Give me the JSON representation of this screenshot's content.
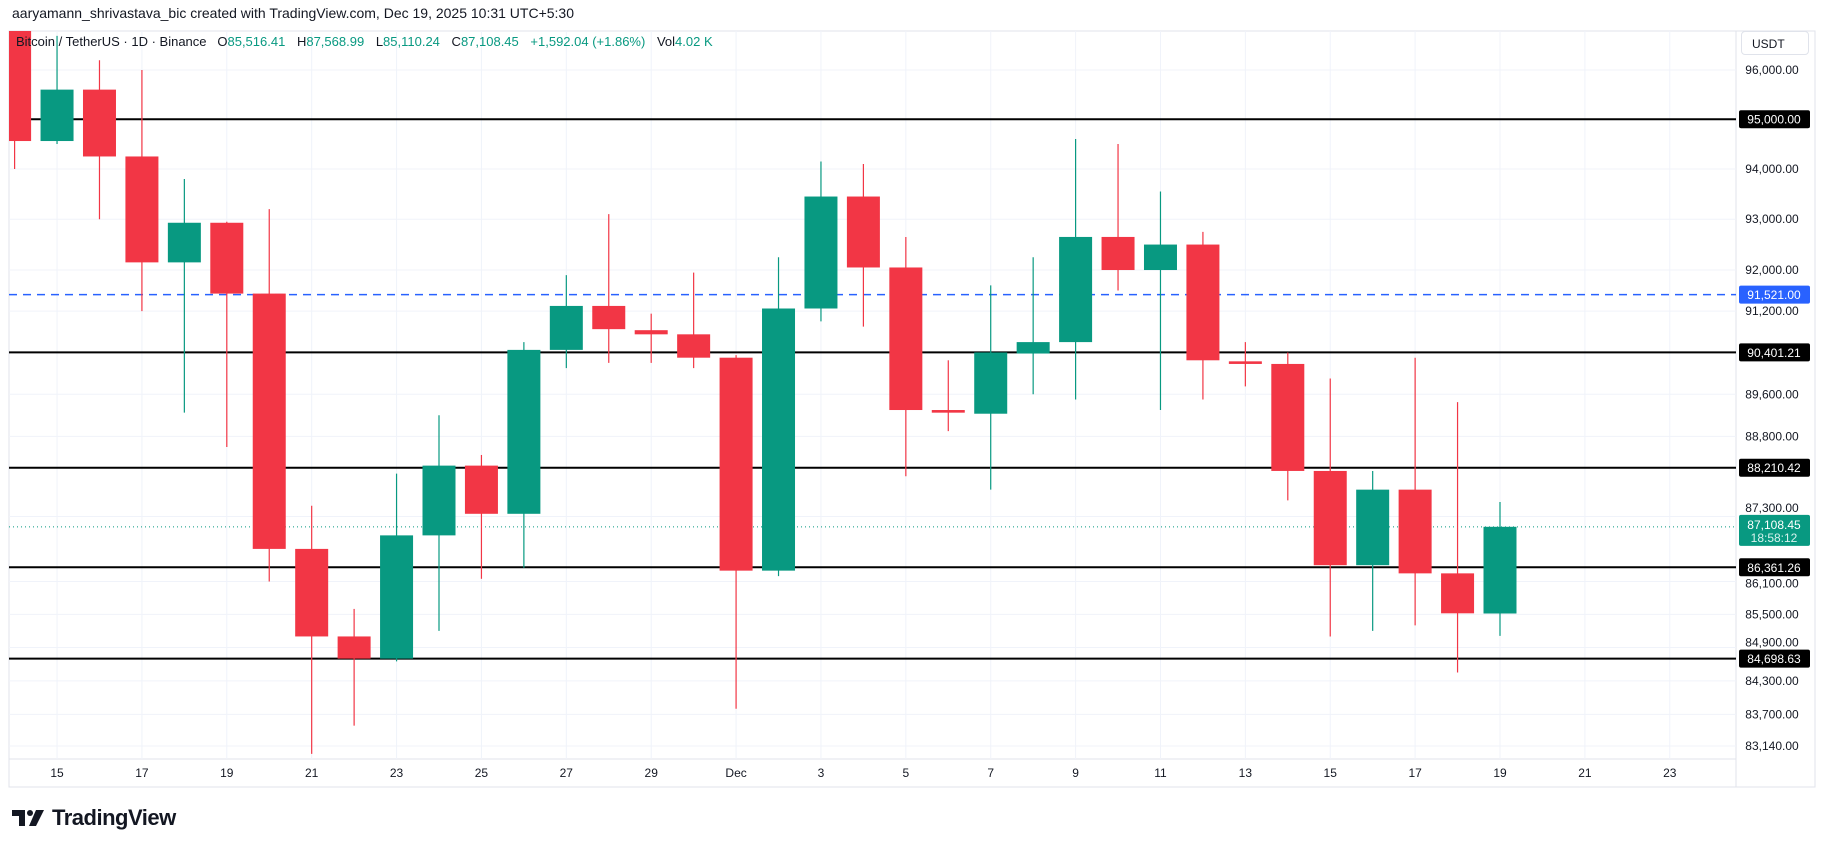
{
  "credit": "aaryamann_shrivastava_bic created with TradingView.com, Dec 19, 2025 10:31 UTC+5:30",
  "legend": {
    "symbol": "Bitcoin / TetherUS · 1D · Binance",
    "open_label": "O",
    "open": "85,516.41",
    "high_label": "H",
    "high": "87,568.99",
    "low_label": "L",
    "low": "85,110.24",
    "close_label": "C",
    "close": "87,108.45",
    "change": "+1,592.04 (+1.86%)",
    "vol_label": "Vol",
    "vol": "4.02 K"
  },
  "currency": "USDT",
  "logo_text": "TradingView",
  "colors": {
    "up": "#089981",
    "down": "#F23645",
    "level": "#000000",
    "blue_level": "#2962FF",
    "grid": "#f0f3fa"
  },
  "chart_data": {
    "type": "candlestick",
    "scale": "log",
    "ylim": [
      83000,
      97500
    ],
    "grid": true,
    "y_ticks": [
      "96,000.00",
      "94,000.00",
      "93,000.00",
      "92,000.00",
      "91,200.00",
      "89,600.00",
      "88,800.00",
      "87,300.00",
      "86,100.00",
      "85,500.00",
      "84,900.00",
      "84,300.00",
      "83,700.00",
      "83,140.00"
    ],
    "x_labels": [
      {
        "day": 1,
        "text": "15"
      },
      {
        "day": 3,
        "text": "17"
      },
      {
        "day": 5,
        "text": "19"
      },
      {
        "day": 7,
        "text": "21"
      },
      {
        "day": 9,
        "text": "23"
      },
      {
        "day": 11,
        "text": "25"
      },
      {
        "day": 13,
        "text": "27"
      },
      {
        "day": 15,
        "text": "29"
      },
      {
        "day": 17,
        "text": "Dec"
      },
      {
        "day": 19,
        "text": "3"
      },
      {
        "day": 21,
        "text": "5"
      },
      {
        "day": 23,
        "text": "7"
      },
      {
        "day": 25,
        "text": "9"
      },
      {
        "day": 27,
        "text": "11"
      },
      {
        "day": 29,
        "text": "13"
      },
      {
        "day": 31,
        "text": "15"
      },
      {
        "day": 33,
        "text": "17"
      },
      {
        "day": 35,
        "text": "19"
      },
      {
        "day": 37,
        "text": "21"
      },
      {
        "day": 39,
        "text": "23"
      }
    ],
    "candles": [
      {
        "date": "Nov 14",
        "o": 97200,
        "h": 99000,
        "l": 94000,
        "c": 94560
      },
      {
        "date": "Nov 15",
        "o": 94560,
        "h": 96700,
        "l": 94500,
        "c": 95600
      },
      {
        "date": "Nov 16",
        "o": 95600,
        "h": 96200,
        "l": 93000,
        "c": 94250
      },
      {
        "date": "Nov 17",
        "o": 94250,
        "h": 96000,
        "l": 91200,
        "c": 92150
      },
      {
        "date": "Nov 18",
        "o": 92150,
        "h": 93800,
        "l": 89250,
        "c": 92930
      },
      {
        "date": "Nov 19",
        "o": 92930,
        "h": 92950,
        "l": 88600,
        "c": 91540
      },
      {
        "date": "Nov 20",
        "o": 91540,
        "h": 93200,
        "l": 86100,
        "c": 86700
      },
      {
        "date": "Nov 21",
        "o": 86700,
        "h": 87500,
        "l": 83000,
        "c": 85100
      },
      {
        "date": "Nov 22",
        "o": 85100,
        "h": 85600,
        "l": 83500,
        "c": 84700
      },
      {
        "date": "Nov 23",
        "o": 84700,
        "h": 88100,
        "l": 84650,
        "c": 86950
      },
      {
        "date": "Nov 24",
        "o": 86950,
        "h": 89200,
        "l": 85200,
        "c": 88250
      },
      {
        "date": "Nov 25",
        "o": 88250,
        "h": 88450,
        "l": 86150,
        "c": 87350
      },
      {
        "date": "Nov 26",
        "o": 87350,
        "h": 90600,
        "l": 86350,
        "c": 90450
      },
      {
        "date": "Nov 27",
        "o": 90450,
        "h": 91900,
        "l": 90100,
        "c": 91300
      },
      {
        "date": "Nov 28",
        "o": 91300,
        "h": 93100,
        "l": 90200,
        "c": 90850
      },
      {
        "date": "Nov 29",
        "o": 90830,
        "h": 91150,
        "l": 90200,
        "c": 90750
      },
      {
        "date": "Nov 30",
        "o": 90750,
        "h": 91950,
        "l": 90100,
        "c": 90300
      },
      {
        "date": "Dec 1",
        "o": 90300,
        "h": 90350,
        "l": 83800,
        "c": 86300
      },
      {
        "date": "Dec 2",
        "o": 86300,
        "h": 92250,
        "l": 86200,
        "c": 91250
      },
      {
        "date": "Dec 3",
        "o": 91250,
        "h": 94150,
        "l": 91000,
        "c": 93450
      },
      {
        "date": "Dec 4",
        "o": 93450,
        "h": 94100,
        "l": 90900,
        "c": 92050
      },
      {
        "date": "Dec 5",
        "o": 92050,
        "h": 92650,
        "l": 88050,
        "c": 89300
      },
      {
        "date": "Dec 6",
        "o": 89300,
        "h": 90250,
        "l": 88900,
        "c": 89250
      },
      {
        "date": "Dec 7",
        "o": 89230,
        "h": 91700,
        "l": 87800,
        "c": 90400
      },
      {
        "date": "Dec 8",
        "o": 90380,
        "h": 92250,
        "l": 89600,
        "c": 90600
      },
      {
        "date": "Dec 9",
        "o": 90600,
        "h": 94600,
        "l": 89500,
        "c": 92650
      },
      {
        "date": "Dec 10",
        "o": 92650,
        "h": 94500,
        "l": 91600,
        "c": 92000
      },
      {
        "date": "Dec 11",
        "o": 92000,
        "h": 93550,
        "l": 89300,
        "c": 92500
      },
      {
        "date": "Dec 12",
        "o": 92500,
        "h": 92750,
        "l": 89500,
        "c": 90250
      },
      {
        "date": "Dec 13",
        "o": 90230,
        "h": 90600,
        "l": 89750,
        "c": 90180
      },
      {
        "date": "Dec 14",
        "o": 90180,
        "h": 90400,
        "l": 87600,
        "c": 88150
      },
      {
        "date": "Dec 15",
        "o": 88150,
        "h": 89900,
        "l": 85100,
        "c": 86400
      },
      {
        "date": "Dec 16",
        "o": 86400,
        "h": 88150,
        "l": 85200,
        "c": 87800
      },
      {
        "date": "Dec 17",
        "o": 87800,
        "h": 90300,
        "l": 85300,
        "c": 86250
      },
      {
        "date": "Dec 18",
        "o": 86250,
        "h": 89450,
        "l": 84450,
        "c": 85520
      },
      {
        "date": "Dec 19",
        "o": 85516.41,
        "h": 87568.99,
        "l": 85110.24,
        "c": 87108.45
      }
    ],
    "levels": [
      {
        "price": 95000,
        "label": "95,000.00",
        "style": "solid"
      },
      {
        "price": 91521,
        "label": "91,521.00",
        "style": "dashed-blue"
      },
      {
        "price": 90401.21,
        "label": "90,401.21",
        "style": "solid"
      },
      {
        "price": 88210.42,
        "label": "88,210.42",
        "style": "solid"
      },
      {
        "price": 86361.26,
        "label": "86,361.26",
        "style": "solid"
      },
      {
        "price": 84698.63,
        "label": "84,698.63",
        "style": "solid"
      }
    ],
    "current": {
      "price": 87108.45,
      "label": "87,108.45",
      "countdown": "18:58:12"
    }
  }
}
